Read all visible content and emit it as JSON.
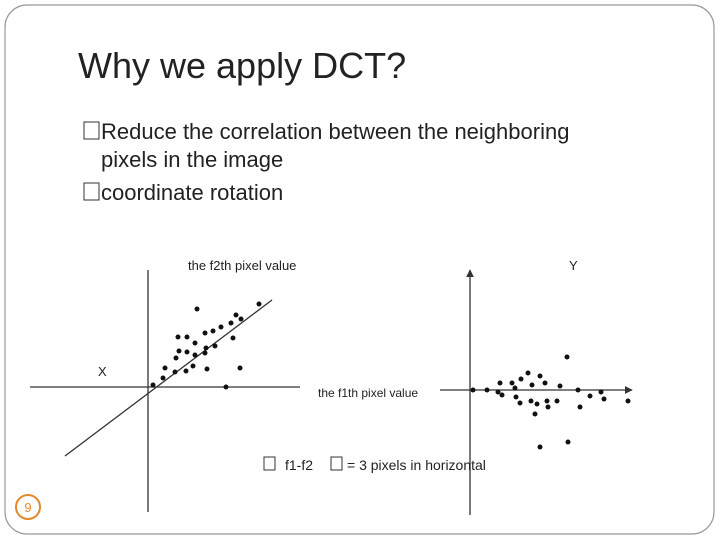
{
  "header": {
    "title": "Why we apply DCT?"
  },
  "bullets": [
    "Reduce the correlation between the neighboring",
    "pixels in the image",
    "coordinate rotation"
  ],
  "figure": {
    "y_axis_label": "the f2th pixel value",
    "x_label": "X",
    "y_label": "Y",
    "x_axis_label": "the f1th pixel value",
    "caption": [
      "f1-f2",
      "= 3 pixels in horizontal"
    ]
  },
  "page_number": "9"
}
